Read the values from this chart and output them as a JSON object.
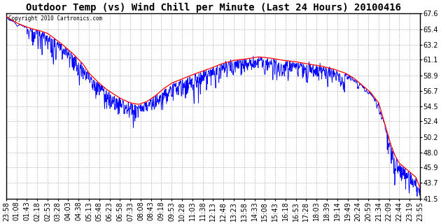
{
  "title": "Outdoor Temp (vs) Wind Chill per Minute (Last 24 Hours) 20100416",
  "copyright_text": "Copyright 2010 Cartronics.com",
  "yticks": [
    41.5,
    43.7,
    45.9,
    48.0,
    50.2,
    52.4,
    54.5,
    56.7,
    58.9,
    61.1,
    63.2,
    65.4,
    67.6
  ],
  "ylim": [
    41.5,
    67.6
  ],
  "xtick_labels": [
    "23:58",
    "01:08",
    "01:43",
    "02:18",
    "02:53",
    "03:28",
    "04:03",
    "04:38",
    "05:13",
    "05:48",
    "06:23",
    "06:58",
    "07:33",
    "08:08",
    "08:43",
    "09:18",
    "09:53",
    "10:28",
    "11:03",
    "11:38",
    "12:13",
    "12:48",
    "13:23",
    "13:58",
    "14:33",
    "15:08",
    "15:43",
    "16:18",
    "16:53",
    "17:28",
    "18:03",
    "18:39",
    "19:14",
    "19:49",
    "20:24",
    "20:59",
    "21:34",
    "22:09",
    "22:44",
    "23:19",
    "23:55"
  ],
  "background_color": "#ffffff",
  "plot_bg_color": "#ffffff",
  "grid_color": "#aaaaaa",
  "line1_color": "#ff0000",
  "line2_color": "#0000ff",
  "title_fontsize": 10,
  "tick_fontsize": 7,
  "temp_control_x": [
    0.0,
    0.01,
    0.025,
    0.045,
    0.06,
    0.08,
    0.1,
    0.13,
    0.16,
    0.185,
    0.2,
    0.22,
    0.24,
    0.26,
    0.28,
    0.3,
    0.32,
    0.34,
    0.36,
    0.38,
    0.4,
    0.43,
    0.46,
    0.49,
    0.52,
    0.55,
    0.58,
    0.61,
    0.64,
    0.67,
    0.7,
    0.73,
    0.76,
    0.79,
    0.82,
    0.84,
    0.86,
    0.88,
    0.9,
    0.91,
    0.92,
    0.93,
    0.94,
    0.95,
    0.96,
    0.97,
    0.98,
    0.99,
    1.0
  ],
  "temp_control_y": [
    67.2,
    66.8,
    66.3,
    65.8,
    65.5,
    65.2,
    64.8,
    63.5,
    62.0,
    60.5,
    59.2,
    58.0,
    57.0,
    56.2,
    55.5,
    55.0,
    54.8,
    55.2,
    56.0,
    57.0,
    57.8,
    58.5,
    59.2,
    59.8,
    60.5,
    61.0,
    61.2,
    61.5,
    61.3,
    61.0,
    60.8,
    60.5,
    60.2,
    59.8,
    59.2,
    58.5,
    57.5,
    56.5,
    55.0,
    53.0,
    51.0,
    49.0,
    47.5,
    46.5,
    46.0,
    45.5,
    45.0,
    44.5,
    43.0
  ]
}
